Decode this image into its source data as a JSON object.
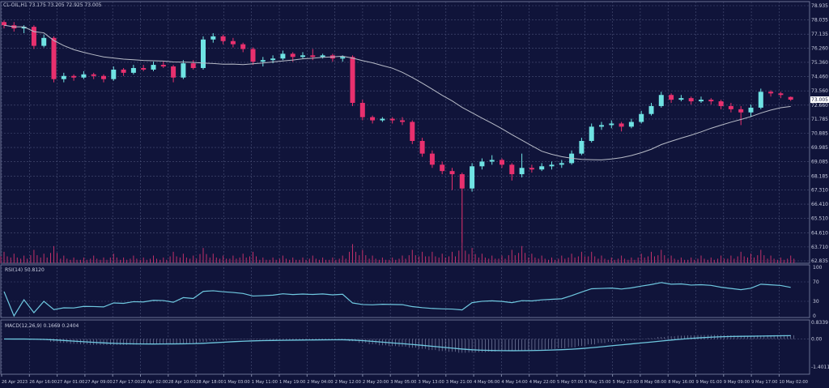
{
  "header": {
    "symbol_label": "CL-OIL,H1",
    "ohlc_label": "73.175 73.205 72.925 73.005"
  },
  "colors": {
    "background": "#10143a",
    "grid": "#4a5078",
    "bull": "#6fe3e3",
    "bear": "#e8306e",
    "ma": "#b8bcc8",
    "indicator": "#6fc8e0",
    "volume": "#c0306a"
  },
  "chart_data": {
    "type": "candlestick",
    "price_axis": {
      "ticks": [
        "78.935",
        "78.035",
        "77.135",
        "76.260",
        "75.360",
        "74.460",
        "73.560",
        "72.660",
        "71.785",
        "70.885",
        "69.985",
        "69.085",
        "68.185",
        "67.310",
        "66.410",
        "65.510",
        "64.610",
        "63.710",
        "62.835"
      ],
      "range": [
        62.835,
        78.935
      ],
      "current_price": "73.005"
    },
    "time_axis": [
      "26 Apr 2023",
      "26 Apr 16:00",
      "27 Apr 01:00",
      "27 Apr 09:00",
      "27 Apr 17:00",
      "28 Apr 02:00",
      "28 Apr 10:00",
      "28 Apr 18:00",
      "1 May 03:00",
      "1 May 11:00",
      "1 May 19:00",
      "2 May 04:00",
      "2 May 12:00",
      "2 May 20:00",
      "3 May 05:00",
      "3 May 13:00",
      "3 May 21:00",
      "4 May 06:00",
      "4 May 14:00",
      "4 May 22:00",
      "5 May 07:00",
      "5 May 15:00",
      "5 May 23:00",
      "8 May 08:00",
      "8 May 16:00",
      "9 May 01:00",
      "9 May 09:00",
      "9 May 17:00",
      "10 May 02:00"
    ],
    "grid": true,
    "moving_average": {
      "type": "SMA",
      "period": 20
    },
    "candles": [
      [
        77.9,
        78.0,
        77.5,
        77.7
      ],
      [
        77.7,
        77.9,
        77.3,
        77.5
      ],
      [
        77.5,
        77.7,
        77.2,
        77.6
      ],
      [
        77.6,
        77.7,
        76.2,
        76.4
      ],
      [
        76.4,
        77.1,
        76.3,
        76.9
      ],
      [
        76.9,
        77.0,
        74.1,
        74.3
      ],
      [
        74.3,
        74.7,
        74.1,
        74.5
      ],
      [
        74.5,
        74.6,
        74.2,
        74.4
      ],
      [
        74.4,
        74.8,
        74.3,
        74.6
      ],
      [
        74.6,
        74.7,
        74.3,
        74.5
      ],
      [
        74.5,
        74.6,
        74.1,
        74.3
      ],
      [
        74.3,
        75.1,
        74.2,
        74.9
      ],
      [
        74.9,
        75.0,
        74.5,
        74.7
      ],
      [
        74.7,
        75.2,
        74.6,
        75.0
      ],
      [
        75.0,
        75.2,
        74.8,
        74.9
      ],
      [
        74.9,
        75.4,
        74.8,
        75.2
      ],
      [
        75.2,
        75.4,
        75.0,
        75.1
      ],
      [
        75.1,
        75.2,
        74.1,
        74.4
      ],
      [
        74.4,
        75.5,
        74.3,
        75.3
      ],
      [
        75.3,
        75.5,
        74.9,
        75.0
      ],
      [
        75.0,
        77.0,
        74.9,
        76.8
      ],
      [
        76.8,
        77.2,
        76.6,
        77.0
      ],
      [
        77.0,
        77.1,
        76.5,
        76.7
      ],
      [
        76.7,
        76.9,
        76.3,
        76.5
      ],
      [
        76.5,
        76.6,
        76.0,
        76.2
      ],
      [
        76.2,
        76.3,
        75.2,
        75.4
      ],
      [
        75.4,
        75.7,
        75.1,
        75.5
      ],
      [
        75.5,
        75.8,
        75.3,
        75.6
      ],
      [
        75.6,
        76.1,
        75.5,
        75.9
      ],
      [
        75.9,
        76.0,
        75.4,
        75.7
      ],
      [
        75.7,
        76.0,
        75.6,
        75.8
      ],
      [
        75.8,
        76.2,
        75.5,
        75.7
      ],
      [
        75.7,
        75.9,
        75.6,
        75.8
      ],
      [
        75.8,
        75.9,
        75.4,
        75.6
      ],
      [
        75.6,
        75.8,
        75.4,
        75.7
      ],
      [
        75.7,
        75.8,
        72.6,
        72.8
      ],
      [
        72.8,
        73.0,
        71.7,
        71.9
      ],
      [
        71.9,
        72.0,
        71.5,
        71.7
      ],
      [
        71.7,
        71.9,
        71.6,
        71.8
      ],
      [
        71.8,
        71.9,
        71.5,
        71.7
      ],
      [
        71.7,
        71.9,
        71.4,
        71.6
      ],
      [
        71.6,
        71.7,
        70.2,
        70.4
      ],
      [
        70.4,
        70.6,
        69.4,
        69.6
      ],
      [
        69.6,
        69.8,
        68.7,
        68.9
      ],
      [
        68.9,
        69.1,
        68.3,
        68.5
      ],
      [
        68.5,
        68.7,
        67.3,
        68.3
      ],
      [
        68.3,
        68.4,
        64.0,
        67.4
      ],
      [
        67.4,
        69.0,
        67.2,
        68.8
      ],
      [
        68.8,
        69.3,
        68.6,
        69.1
      ],
      [
        69.1,
        69.5,
        68.9,
        69.2
      ],
      [
        69.2,
        69.3,
        68.7,
        68.9
      ],
      [
        68.9,
        69.0,
        67.9,
        68.3
      ],
      [
        68.3,
        69.6,
        68.1,
        68.7
      ],
      [
        68.7,
        68.9,
        68.4,
        68.6
      ],
      [
        68.6,
        69.0,
        68.5,
        68.8
      ],
      [
        68.8,
        69.1,
        68.6,
        68.9
      ],
      [
        68.9,
        69.2,
        68.7,
        69.0
      ],
      [
        69.0,
        69.8,
        68.9,
        69.6
      ],
      [
        69.6,
        70.6,
        69.5,
        70.4
      ],
      [
        70.4,
        71.5,
        70.3,
        71.3
      ],
      [
        71.3,
        71.6,
        71.1,
        71.4
      ],
      [
        71.4,
        71.7,
        71.2,
        71.5
      ],
      [
        71.5,
        71.6,
        71.0,
        71.3
      ],
      [
        71.3,
        71.8,
        71.2,
        71.6
      ],
      [
        71.6,
        72.3,
        71.5,
        72.1
      ],
      [
        72.1,
        72.8,
        72.0,
        72.6
      ],
      [
        72.6,
        73.5,
        72.5,
        73.3
      ],
      [
        73.3,
        73.4,
        72.8,
        73.0
      ],
      [
        73.0,
        73.3,
        72.9,
        73.1
      ],
      [
        73.1,
        73.2,
        72.7,
        72.9
      ],
      [
        72.9,
        73.2,
        72.8,
        73.0
      ],
      [
        73.0,
        73.1,
        72.7,
        72.9
      ],
      [
        72.9,
        73.0,
        72.4,
        72.6
      ],
      [
        72.6,
        72.8,
        72.2,
        72.4
      ],
      [
        72.4,
        72.6,
        71.4,
        72.2
      ],
      [
        72.2,
        72.7,
        71.9,
        72.5
      ],
      [
        72.5,
        73.7,
        72.4,
        73.5
      ],
      [
        73.5,
        73.6,
        73.2,
        73.4
      ],
      [
        73.4,
        73.5,
        73.1,
        73.3
      ],
      [
        73.175,
        73.205,
        72.925,
        73.005
      ]
    ],
    "volumes": [
      6,
      5,
      4,
      7,
      5,
      9,
      4,
      3,
      3,
      4,
      3,
      5,
      3,
      4,
      3,
      4,
      3,
      6,
      5,
      4,
      8,
      5,
      4,
      4,
      5,
      6,
      3,
      3,
      4,
      3,
      3,
      4,
      3,
      3,
      4,
      10,
      7,
      4,
      3,
      3,
      4,
      7,
      6,
      6,
      5,
      6,
      11,
      8,
      5,
      4,
      4,
      7,
      9,
      5,
      4,
      3,
      4,
      5,
      6,
      6,
      4,
      3,
      4,
      3,
      5,
      6,
      7,
      4,
      3,
      3,
      4,
      3,
      4,
      4,
      6,
      5,
      7,
      4,
      3,
      4
    ],
    "rsi": {
      "label": "RSI(14) 50.8120",
      "ticks": [
        "100",
        "70",
        "30",
        "0"
      ],
      "levels": [
        100,
        70,
        30,
        0
      ]
    },
    "macd": {
      "label": "MACD(12,26,9) 0.1669 0.2404",
      "ticks": [
        "0.8339",
        "0.00",
        "-1.4011"
      ],
      "range": [
        -1.4011,
        0.8339
      ]
    }
  }
}
